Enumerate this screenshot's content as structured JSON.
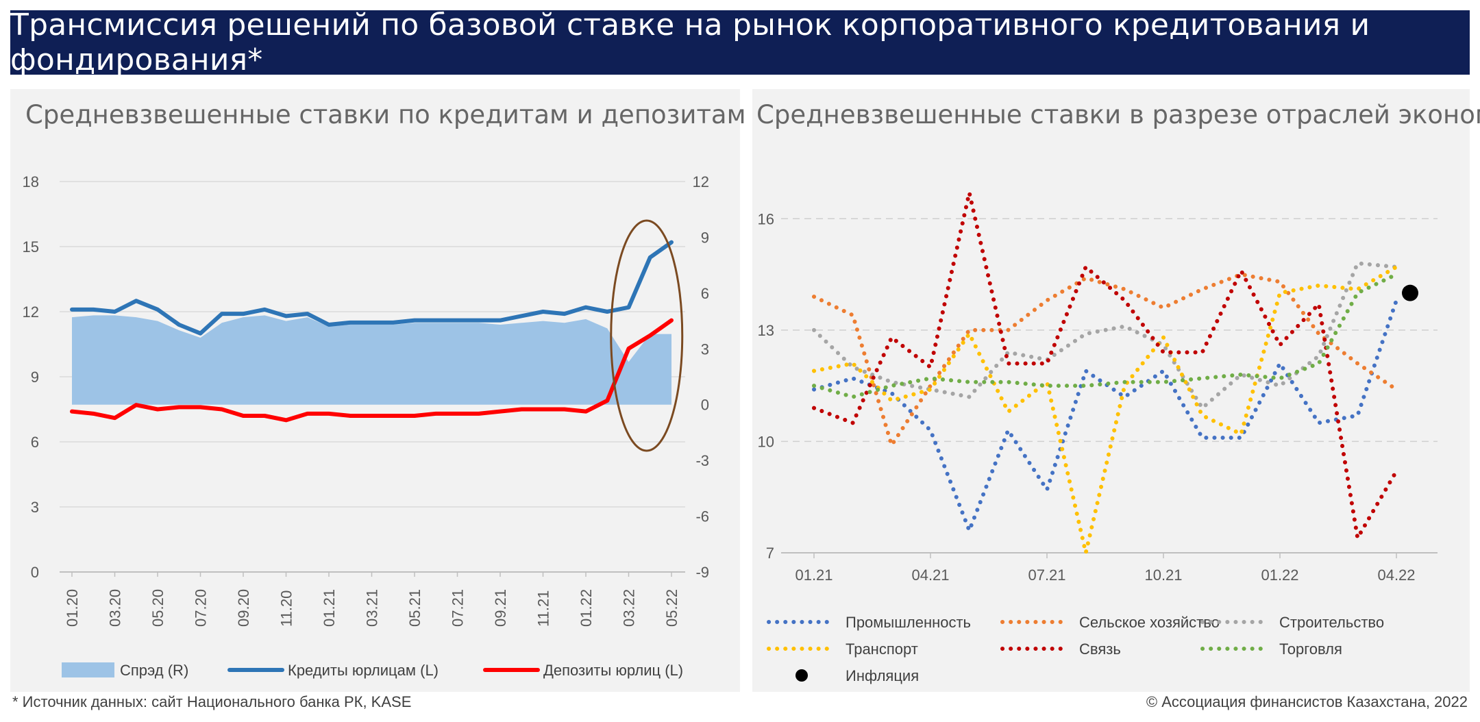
{
  "banner": {
    "title": "Трансмиссия решений по базовой ставке на рынок корпоративного кредитования и фондирования*"
  },
  "footer": {
    "source": "* Источник данных: сайт Национального банка РК, KASE",
    "copyright": "© Ассоциация финансистов Казахстана, 2022"
  },
  "chart_data": [
    {
      "type": "line",
      "title": "Средневзвешенные ставки по кредитам и депозитам ЮЛ",
      "xlabel": "",
      "ylabel": "",
      "categories": [
        "01.20",
        "02.20",
        "03.20",
        "04.20",
        "05.20",
        "06.20",
        "07.20",
        "08.20",
        "09.20",
        "10.20",
        "11.20",
        "12.20",
        "01.21",
        "02.21",
        "03.21",
        "04.21",
        "05.21",
        "06.21",
        "07.21",
        "08.21",
        "09.21",
        "10.21",
        "11.21",
        "12.21",
        "01.22",
        "02.22",
        "03.22",
        "04.22",
        "05.22"
      ],
      "x_tick_labels": [
        "01.20",
        "03.20",
        "05.20",
        "07.20",
        "09.20",
        "11.20",
        "01.21",
        "03.21",
        "05.21",
        "07.21",
        "09.21",
        "11.21",
        "01.22",
        "03.22",
        "05.22"
      ],
      "ylim_left": [
        0,
        18
      ],
      "yticks_left": [
        "0",
        "3",
        "6",
        "9",
        "12",
        "15",
        "18"
      ],
      "ylim_right": [
        -9,
        12
      ],
      "yticks_right": [
        "-9",
        "-6",
        "-3",
        "0",
        "3",
        "6",
        "9",
        "12"
      ],
      "grid": "horizontal",
      "legend_position": "bottom",
      "annotation": "ellipse around 02.22–05.22",
      "series": [
        {
          "name": "Спрэд (R)",
          "kind": "area",
          "axis": "right",
          "color": "#9dc3e6",
          "values": [
            4.7,
            4.8,
            4.8,
            4.7,
            4.5,
            4.0,
            3.6,
            4.4,
            4.7,
            4.8,
            4.5,
            4.7,
            4.2,
            4.3,
            4.3,
            4.3,
            4.4,
            4.4,
            4.4,
            4.4,
            4.3,
            4.4,
            4.5,
            4.4,
            4.6,
            4.1,
            2.3,
            3.8,
            3.8
          ]
        },
        {
          "name": "Кредиты юрлицам (L)",
          "kind": "line",
          "axis": "left",
          "color": "#2e75b6",
          "values": [
            12.1,
            12.1,
            12.0,
            12.5,
            12.1,
            11.4,
            11.0,
            11.9,
            11.9,
            12.1,
            11.8,
            11.9,
            11.4,
            11.5,
            11.5,
            11.5,
            11.6,
            11.6,
            11.6,
            11.6,
            11.6,
            11.8,
            12.0,
            11.9,
            12.2,
            12.0,
            12.2,
            14.5,
            15.2
          ]
        },
        {
          "name": "Депозиты юрлиц (L)",
          "kind": "line",
          "axis": "left",
          "color": "#ff0000",
          "values": [
            7.4,
            7.3,
            7.1,
            7.7,
            7.5,
            7.6,
            7.6,
            7.5,
            7.2,
            7.2,
            7.0,
            7.3,
            7.3,
            7.2,
            7.2,
            7.2,
            7.2,
            7.3,
            7.3,
            7.3,
            7.4,
            7.5,
            7.5,
            7.5,
            7.4,
            7.9,
            10.3,
            10.9,
            11.6
          ]
        }
      ]
    },
    {
      "type": "line",
      "title": "Средневзвешенные ставки в разрезе отраслей экономики",
      "xlabel": "",
      "ylabel": "",
      "categories": [
        "01.21",
        "02.21",
        "03.21",
        "04.21",
        "05.21",
        "06.21",
        "07.21",
        "08.21",
        "09.21",
        "10.21",
        "11.21",
        "12.21",
        "01.22",
        "02.22",
        "03.22",
        "04.22"
      ],
      "x_tick_labels": [
        "01.21",
        "04.21",
        "07.21",
        "10.21",
        "01.22",
        "04.22"
      ],
      "ylim": [
        7,
        17.5
      ],
      "yticks": [
        "7",
        "10",
        "13",
        "16"
      ],
      "grid": "horizontal dashed",
      "legend_position": "bottom",
      "series": [
        {
          "name": "Промышленность",
          "style": "dotted",
          "color": "#4472c4",
          "values": [
            11.4,
            11.7,
            11.3,
            10.3,
            7.6,
            10.3,
            8.7,
            11.9,
            11.2,
            11.9,
            10.1,
            10.1,
            12.1,
            10.5,
            10.7,
            13.8
          ]
        },
        {
          "name": "Сельское хозяйство",
          "style": "dotted",
          "color": "#ed7d31",
          "values": [
            13.9,
            13.4,
            9.9,
            11.5,
            13.0,
            13.0,
            13.8,
            14.4,
            14.1,
            13.6,
            14.1,
            14.5,
            14.3,
            12.9,
            12.1,
            11.4
          ]
        },
        {
          "name": "Строительство",
          "style": "dotted",
          "color": "#a5a5a5",
          "values": [
            13.0,
            12.0,
            11.6,
            11.4,
            11.2,
            12.4,
            12.2,
            12.9,
            13.1,
            12.6,
            10.9,
            11.8,
            11.5,
            12.3,
            14.8,
            14.7
          ]
        },
        {
          "name": "Транспорт",
          "style": "dotted",
          "color": "#ffc000",
          "values": [
            11.9,
            12.1,
            11.1,
            11.4,
            12.9,
            10.8,
            11.6,
            7.0,
            11.5,
            12.8,
            10.7,
            10.2,
            14.0,
            14.2,
            14.1,
            14.7
          ]
        },
        {
          "name": "Связь",
          "style": "dotted",
          "color": "#c00000",
          "values": [
            10.9,
            10.5,
            12.8,
            12.0,
            16.7,
            12.1,
            12.1,
            14.7,
            13.8,
            12.4,
            12.4,
            14.6,
            12.6,
            13.7,
            7.4,
            9.2
          ]
        },
        {
          "name": "Торговля",
          "style": "dotted",
          "color": "#70ad47",
          "values": [
            11.5,
            11.2,
            11.5,
            11.7,
            11.6,
            11.6,
            11.5,
            11.5,
            11.6,
            11.6,
            11.7,
            11.8,
            11.7,
            12.1,
            14.0,
            14.5
          ]
        },
        {
          "name": "Инфляция",
          "style": "marker",
          "color": "#000000",
          "points": [
            {
              "x": "04.22",
              "y": 14.0
            }
          ]
        }
      ]
    }
  ]
}
